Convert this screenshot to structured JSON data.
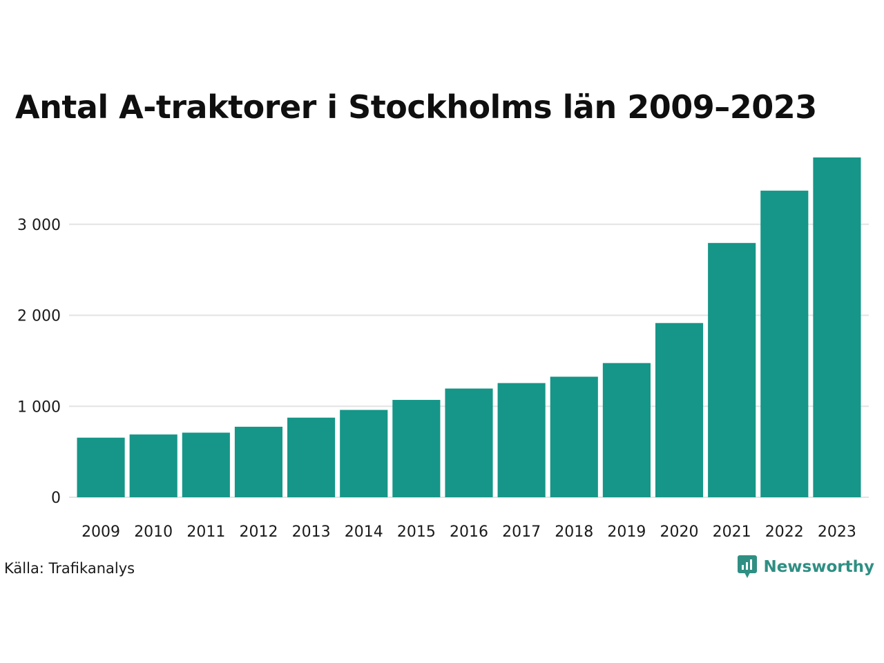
{
  "chart_data": {
    "type": "bar",
    "title": "Antal A-traktorer i Stockholms län 2009–2023",
    "xlabel": "",
    "ylabel": "",
    "categories": [
      "2009",
      "2010",
      "2011",
      "2012",
      "2013",
      "2014",
      "2015",
      "2016",
      "2017",
      "2018",
      "2019",
      "2020",
      "2021",
      "2022",
      "2023"
    ],
    "values": [
      655,
      690,
      710,
      775,
      875,
      960,
      1070,
      1195,
      1255,
      1325,
      1475,
      1915,
      2795,
      3370,
      3735
    ],
    "ylim": [
      0,
      3750
    ],
    "yticks": [
      0,
      1000,
      2000,
      3000
    ],
    "ytick_labels": [
      "0",
      "1 000",
      "2 000",
      "3 000"
    ],
    "grid": true,
    "bar_color": "#159688",
    "grid_color": "#e3e3e3"
  },
  "footer": {
    "source": "Källa: Trafikanalys",
    "brand": "Newsworthy",
    "brand_color": "#2f8f83",
    "brand_icon": "bar-chart-speech-bubble-icon"
  }
}
